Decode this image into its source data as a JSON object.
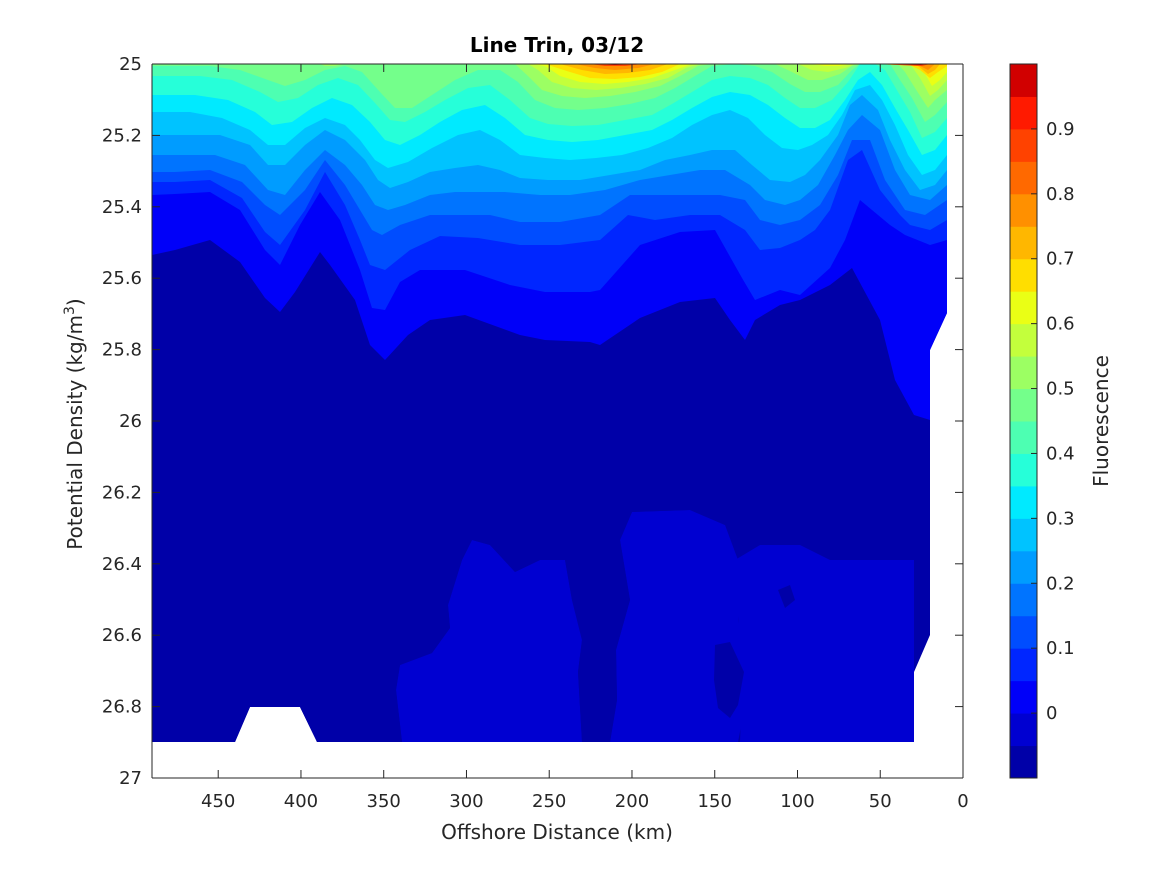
{
  "chart_data": {
    "type": "contour",
    "title": "Line Trin, 03/12",
    "xlabel": "Offshore Distance (km)",
    "ylabel": "Potential Density (kg/m3)",
    "ylabel_parts": {
      "main": "Potential Density (kg/m",
      "sup": "3",
      "end": ")"
    },
    "colorbar_label": "Fluorescence",
    "x_reversed": true,
    "y_reversed": true,
    "xlim": [
      490,
      0
    ],
    "ylim": [
      25,
      27
    ],
    "x_ticks": [
      450,
      400,
      350,
      300,
      250,
      200,
      150,
      100,
      50,
      0
    ],
    "y_ticks": [
      25,
      25.2,
      25.4,
      25.6,
      25.8,
      26,
      26.2,
      26.4,
      26.6,
      26.8,
      27
    ],
    "y_tick_labels": [
      "25",
      "25.2",
      "25.4",
      "25.6",
      "25.8",
      "26",
      "26.2",
      "26.4",
      "26.6",
      "26.8",
      "27"
    ],
    "colorbar_range": [
      -0.1,
      1.0
    ],
    "colorbar_ticks": [
      0,
      0.1,
      0.2,
      0.3,
      0.4,
      0.5,
      0.6,
      0.7,
      0.8,
      0.9
    ],
    "colorbar_tick_labels": [
      "0",
      "0.1",
      "0.2",
      "0.3",
      "0.4",
      "0.5",
      "0.6",
      "0.7",
      "0.8",
      "0.9"
    ],
    "colormap": "jet",
    "levels": [
      -0.1,
      -0.05,
      0,
      0.05,
      0.1,
      0.15,
      0.2,
      0.25,
      0.3,
      0.35,
      0.4,
      0.45,
      0.5,
      0.55,
      0.6,
      0.65,
      0.7,
      0.75,
      0.8,
      0.85,
      0.9,
      0.95,
      1.0
    ],
    "level_colors": [
      "#000080",
      "#0000A8",
      "#0000D1",
      "#0000F9",
      "#0026FF",
      "#004DFF",
      "#0074FF",
      "#009CFF",
      "#00C3FF",
      "#00EAFF",
      "#26FFD9",
      "#4DFFB2",
      "#74FF8B",
      "#9CFF63",
      "#C3FF3C",
      "#EAFF15",
      "#FFDE00",
      "#FFB700",
      "#FF9000",
      "#FF6900",
      "#FF4200",
      "#FF1A00",
      "#D10000",
      "#800000"
    ],
    "data_extent": {
      "x_min": 10,
      "x_max": 490,
      "bottom_boundary": [
        [
          490,
          26.9
        ],
        [
          440,
          26.9
        ],
        [
          430,
          26.8
        ],
        [
          400,
          26.8
        ],
        [
          390,
          26.9
        ],
        [
          30,
          26.9
        ],
        [
          30,
          26.7
        ],
        [
          20,
          26.6
        ],
        [
          20,
          25.8
        ],
        [
          10,
          25.7
        ],
        [
          10,
          25
        ]
      ]
    },
    "isopycnal_values": [
      {
        "x": 490,
        "top": 25.05,
        "green_to": 25.05,
        "cyan_to": 25.1,
        "light_blue_to": 25.2,
        "blue_to": 25.35,
        "mid_blue_to": 25.53,
        "dark_to": 25.8
      },
      {
        "x": 460,
        "top": 25.05,
        "green_to": 25.05,
        "cyan_to": 25.1,
        "light_blue_to": 25.22,
        "blue_to": 25.35,
        "mid_blue_to": 25.5,
        "dark_to": 25.78
      },
      {
        "x": 430,
        "top": 25.0,
        "green_to": 25.05,
        "cyan_to": 25.12,
        "light_blue_to": 25.25,
        "blue_to": 25.38,
        "mid_blue_to": 25.68,
        "dark_to": 25.98
      },
      {
        "x": 400,
        "top": 25.0,
        "green_to": 25.02,
        "cyan_to": 25.1,
        "light_blue_to": 25.15,
        "blue_to": 25.3,
        "mid_blue_to": 25.5,
        "dark_to": 25.8
      },
      {
        "x": 350,
        "top": 25.0,
        "green_to": 25.2,
        "cyan_to": 25.33,
        "light_blue_to": 25.48,
        "blue_to": 25.58,
        "mid_blue_to": 25.72,
        "dark_to": 26.05
      },
      {
        "x": 300,
        "top": 25.0,
        "green_to": 25.05,
        "cyan_to": 25.2,
        "light_blue_to": 25.33,
        "blue_to": 25.45,
        "mid_blue_to": 25.62,
        "dark_to": 26.1
      },
      {
        "x": 250,
        "top": 25.0,
        "green_to": 25.18,
        "cyan_to": 25.27,
        "light_blue_to": 25.42,
        "blue_to": 25.53,
        "mid_blue_to": 25.7,
        "dark_to": 26.1
      },
      {
        "x": 200,
        "top": 25.0,
        "green_to": 25.2,
        "cyan_to": 25.3,
        "light_blue_to": 25.42,
        "blue_to": 25.5,
        "mid_blue_to": 25.72,
        "dark_to": 26.03
      },
      {
        "x": 150,
        "top": 25.0,
        "green_to": 25.05,
        "cyan_to": 25.15,
        "light_blue_to": 25.3,
        "blue_to": 25.43,
        "mid_blue_to": 25.63,
        "dark_to": 26.0
      },
      {
        "x": 100,
        "top": 25.0,
        "green_to": 25.1,
        "cyan_to": 25.2,
        "light_blue_to": 25.3,
        "blue_to": 25.45,
        "mid_blue_to": 25.8,
        "dark_to": 26.05
      },
      {
        "x": 50,
        "top": 25.0,
        "green_to": 25.2,
        "cyan_to": 25.36,
        "light_blue_to": 25.42,
        "blue_to": 25.5,
        "mid_blue_to": 25.6,
        "dark_to": 26.0
      }
    ]
  }
}
